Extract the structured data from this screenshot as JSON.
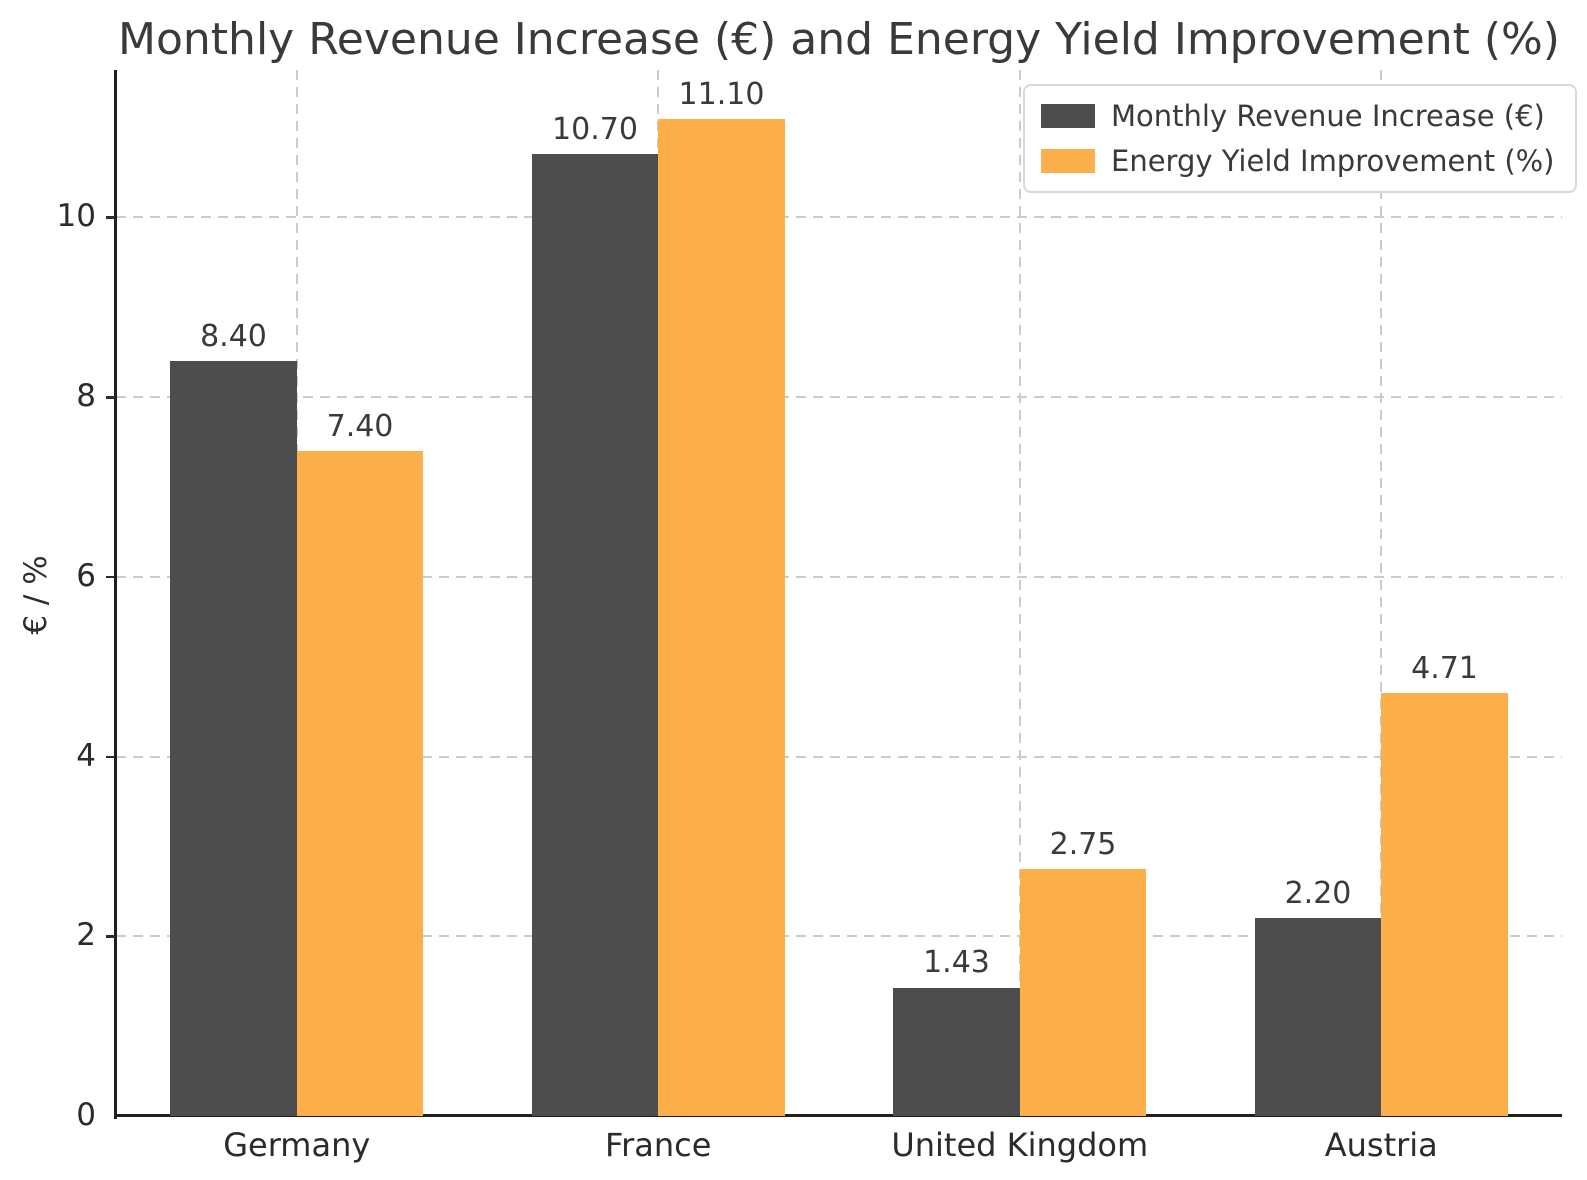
{
  "chart_data": {
    "type": "bar",
    "title": "Monthly Revenue Increase (€) and Energy Yield Improvement (%)",
    "xlabel": "",
    "ylabel": "€ / %",
    "categories": [
      "Germany",
      "France",
      "United Kingdom",
      "Austria"
    ],
    "series": [
      {
        "name": "Monthly Revenue Increase (€)",
        "color": "#4d4d4d",
        "values": [
          8.4,
          10.7,
          1.43,
          2.2
        ],
        "value_labels": [
          "8.40",
          "10.70",
          "1.43",
          "2.20"
        ]
      },
      {
        "name": "Energy Yield Improvement (%)",
        "color": "#fcae4a",
        "values": [
          7.4,
          11.1,
          2.75,
          4.71
        ],
        "value_labels": [
          "7.40",
          "11.10",
          "2.75",
          "4.71"
        ]
      }
    ],
    "yticks": [
      0,
      2,
      4,
      6,
      8,
      10
    ],
    "ytick_labels": [
      "0",
      "2",
      "4",
      "6",
      "8",
      "10"
    ],
    "ylim": [
      0,
      11.64
    ],
    "grid": true,
    "grid_style": "dashed",
    "legend_position": "upper right"
  }
}
